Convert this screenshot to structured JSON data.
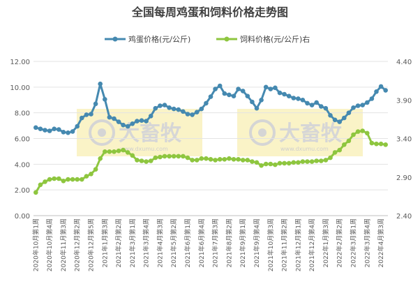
{
  "chart_data": {
    "type": "line",
    "title": "全国每周鸡蛋和饲料价格走势图",
    "watermark": {
      "brand": "大畜牧",
      "url": "www.dxumu.com"
    },
    "colors": {
      "egg": "#4589b0",
      "feed": "#8ec63f",
      "grid": "#e3e3e3",
      "watermark_bg": "#faf3c7"
    },
    "categories": [
      "2020年10月第1周",
      "2020年10月第2周",
      "2020年10月第3周",
      "2020年10月第4周",
      "2020年11月第1周",
      "2020年11月第2周",
      "2020年11月第3周",
      "2020年11月第4周",
      "2020年12月第1周",
      "2020年12月第2周",
      "2020年12月第3周",
      "2020年12月第4周",
      "2020年12月第5周",
      "2021年1月第1周",
      "2021年1月第2周",
      "2021年1月第3周",
      "2021年1月第4周",
      "2021年2月第1周",
      "2021年2月第2周",
      "2021年2月第3周",
      "2021年2月第4周",
      "2021年3月第1周",
      "2021年3月第2周",
      "2021年3月第3周",
      "2021年3月第4周",
      "2021年4月第1周",
      "2021年4月第2周",
      "2021年4月第3周",
      "2021年4月第4周",
      "2021年5月第1周",
      "2021年5月第2周",
      "2021年5月第3周",
      "2021年5月第4周",
      "2021年6月第1周",
      "2021年6月第2周",
      "2021年6月第3周",
      "2021年6月第4周",
      "2021年7月第1周",
      "2021年7月第2周",
      "2021年7月第3周",
      "2021年7月第4周",
      "2021年8月第1周",
      "2021年8月第2周",
      "2021年8月第3周",
      "2021年8月第4周",
      "2021年9月第1周",
      "2021年9月第2周",
      "2021年9月第3周",
      "2021年9月第4周",
      "2021年10月第1周",
      "2021年10月第2周",
      "2021年10月第3周",
      "2021年10月第4周",
      "2021年11月第1周",
      "2021年11月第2周",
      "2021年11月第3周",
      "2021年11月第4周",
      "2021年12月第1周",
      "2021年12月第2周",
      "2021年12月第3周",
      "2021年12月第4周",
      "2022年1月第1周",
      "2022年1月第2周",
      "2022年1月第3周",
      "2022年1月第4周",
      "2022年2月第1周",
      "2022年2月第2周",
      "2022年2月第3周",
      "2022年2月第4周",
      "2022年3月第1周",
      "2022年3月第2周",
      "2022年3月第3周",
      "2022年3月第4周",
      "2022年4月第1周",
      "2022年4月第2周",
      "2022年4月第3周",
      "2022年4月第4周"
    ],
    "tick_label_every": 3,
    "series": [
      {
        "name": "鸡蛋价格(元/公斤)",
        "axis": "left",
        "color": "#4589b0",
        "values": [
          6.85,
          6.75,
          6.65,
          6.6,
          6.75,
          6.7,
          6.5,
          6.45,
          6.55,
          6.95,
          7.6,
          7.85,
          7.9,
          8.7,
          10.25,
          9.05,
          7.65,
          7.55,
          7.3,
          7.05,
          6.95,
          7.15,
          7.35,
          7.4,
          7.35,
          7.75,
          8.35,
          8.55,
          8.6,
          8.4,
          8.3,
          8.25,
          8.1,
          7.9,
          7.85,
          8.05,
          8.3,
          8.75,
          9.25,
          9.85,
          10.1,
          9.5,
          9.4,
          9.3,
          9.85,
          9.7,
          9.3,
          8.85,
          8.35,
          9.0,
          10.0,
          9.85,
          9.95,
          9.55,
          9.45,
          9.3,
          9.15,
          9.1,
          9.0,
          8.75,
          8.6,
          8.8,
          8.5,
          8.35,
          7.8,
          7.45,
          7.3,
          7.6,
          8.0,
          8.4,
          8.55,
          8.6,
          8.8,
          9.1,
          9.65,
          10.05,
          9.75
        ]
      },
      {
        "name": "饲料价格(元/公斤)右",
        "axis": "right",
        "color": "#8ec63f",
        "values": [
          2.7,
          2.8,
          2.84,
          2.87,
          2.88,
          2.88,
          2.85,
          2.87,
          2.87,
          2.87,
          2.87,
          2.91,
          2.94,
          3.0,
          3.14,
          3.23,
          3.23,
          3.23,
          3.24,
          3.25,
          3.22,
          3.18,
          3.12,
          3.11,
          3.1,
          3.11,
          3.15,
          3.16,
          3.17,
          3.17,
          3.17,
          3.17,
          3.17,
          3.15,
          3.12,
          3.12,
          3.14,
          3.14,
          3.13,
          3.12,
          3.13,
          3.13,
          3.14,
          3.13,
          3.13,
          3.12,
          3.12,
          3.1,
          3.09,
          3.05,
          3.07,
          3.07,
          3.06,
          3.08,
          3.08,
          3.08,
          3.09,
          3.09,
          3.1,
          3.1,
          3.1,
          3.11,
          3.11,
          3.12,
          3.15,
          3.22,
          3.25,
          3.32,
          3.37,
          3.45,
          3.49,
          3.5,
          3.47,
          3.34,
          3.33,
          3.33,
          3.32
        ]
      }
    ],
    "y_left": {
      "min": 0,
      "max": 12,
      "step": 2,
      "tick_decimals": 2
    },
    "y_right": {
      "min": 2.4,
      "max": 4.4,
      "step": 0.5,
      "tick_decimals": 2
    },
    "grid": true,
    "legend": "top-center"
  }
}
